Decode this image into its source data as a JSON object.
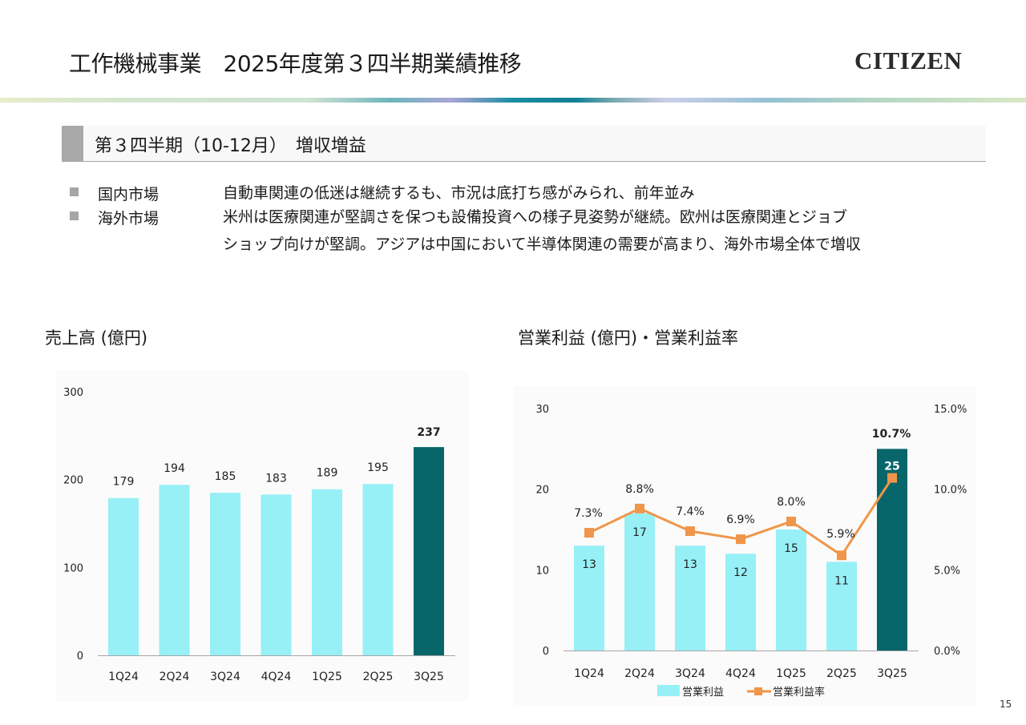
{
  "header": {
    "title": "工作機械事業　2025年度第３四半期業績推移",
    "logo": "CITIZEN"
  },
  "section": {
    "title": "第３四半期（10-12月）　増収増益"
  },
  "markets": [
    {
      "label": "国内市場",
      "lines": [
        "自動車関連の低迷は継続するも、市況は底打ち感がみられ、前年並み"
      ]
    },
    {
      "label": "海外市場",
      "lines": [
        "米州は医療関連が堅調さを保つも設備投資への様子見姿勢が継続。欧州は医療関連とジョブ",
        "ショップ向けが堅調。アジアは中国において半導体関連の需要が高まり、海外市場全体で増収"
      ]
    }
  ],
  "colors": {
    "bar_light": "#97F0F6",
    "bar_highlight": "#07666A",
    "line": "#F0964A",
    "axis": "#a6a6a6"
  },
  "chart_data": [
    {
      "type": "bar",
      "title": "売上高 (億円)",
      "categories": [
        "1Q24",
        "2Q24",
        "3Q24",
        "4Q24",
        "1Q25",
        "2Q25",
        "3Q25"
      ],
      "values": [
        179,
        194,
        185,
        183,
        189,
        195,
        237
      ],
      "highlight_index": 6,
      "yticks": [
        "0",
        "100",
        "200",
        "300"
      ],
      "ylim": [
        0,
        300
      ],
      "xlabel": "",
      "ylabel": "",
      "grid": false,
      "legend": "none"
    },
    {
      "type": "bar",
      "title": "営業利益 (億円)・営業利益率",
      "categories": [
        "1Q24",
        "2Q24",
        "3Q24",
        "4Q24",
        "1Q25",
        "2Q25",
        "3Q25"
      ],
      "series": [
        {
          "name": "営業利益",
          "type": "bar",
          "axis": "left",
          "values": [
            13,
            17,
            13,
            12,
            15,
            11,
            25
          ],
          "labels": [
            "13",
            "17",
            "13",
            "12",
            "15",
            "11",
            "25"
          ]
        },
        {
          "name": "営業利益率",
          "type": "line",
          "axis": "right",
          "values": [
            7.3,
            8.8,
            7.4,
            6.9,
            8.0,
            5.9,
            10.7
          ],
          "labels": [
            "7.3%",
            "8.8%",
            "7.4%",
            "6.9%",
            "8.0%",
            "5.9%",
            "10.7%"
          ]
        }
      ],
      "highlight_index": 6,
      "yticks_left": [
        "0",
        "10",
        "20",
        "30"
      ],
      "ylim_left": [
        0,
        30
      ],
      "yticks_right": [
        "0.0%",
        "5.0%",
        "10.0%",
        "15.0%"
      ],
      "ylim_right": [
        0,
        15
      ],
      "grid": false,
      "legend": "bottom"
    }
  ],
  "page_number": "15"
}
